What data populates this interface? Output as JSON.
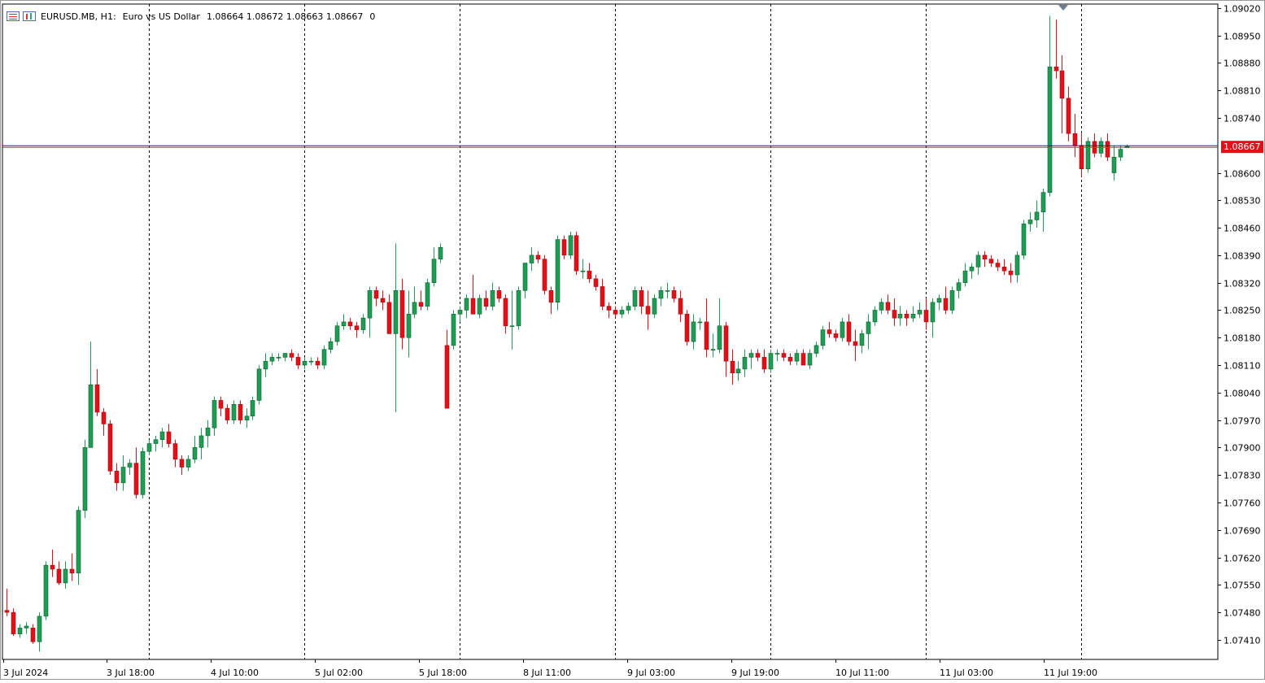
{
  "symbol": {
    "name": "EURUSD.MB, H1:",
    "description": "Euro vs US Dollar",
    "ohlc": "1.08664 1.08672 1.08663 1.08667",
    "volume": "0"
  },
  "colors": {
    "bull": "#1f9d55",
    "bear": "#e3101a",
    "bid_line": "#1a237e",
    "ask_line": "#d32f2f",
    "price_label_bg": "#e3101a"
  },
  "chart_data": {
    "type": "candlestick",
    "timeframe": "H1",
    "ylim": [
      1.0736,
      1.0903
    ],
    "current_price": "1.08667",
    "yticks": [
      "1.09020",
      "1.08950",
      "1.08880",
      "1.08810",
      "1.08740",
      "1.08600",
      "1.08530",
      "1.08460",
      "1.08390",
      "1.08320",
      "1.08250",
      "1.08180",
      "1.08110",
      "1.08040",
      "1.07970",
      "1.07900",
      "1.07830",
      "1.07760",
      "1.07690",
      "1.07620",
      "1.07550",
      "1.07480",
      "1.07410"
    ],
    "xticks": [
      "3 Jul 2024",
      "3 Jul 18:00",
      "4 Jul 10:00",
      "5 Jul 02:00",
      "5 Jul 18:00",
      "8 Jul 11:00",
      "9 Jul 03:00",
      "9 Jul 19:00",
      "10 Jul 11:00",
      "11 Jul 03:00",
      "11 Jul 19:00"
    ],
    "ohlc": [
      [
        1.07485,
        1.0754,
        1.0747,
        1.0748
      ],
      [
        1.0748,
        1.0749,
        1.0742,
        1.07425
      ],
      [
        1.07425,
        1.0745,
        1.07415,
        1.0744
      ],
      [
        1.0744,
        1.07455,
        1.07425,
        1.07445
      ],
      [
        1.0744,
        1.0745,
        1.074,
        1.07405
      ],
      [
        1.07405,
        1.0748,
        1.0738,
        1.0747
      ],
      [
        1.0747,
        1.0761,
        1.0746,
        1.076
      ],
      [
        1.076,
        1.0764,
        1.0757,
        1.0759
      ],
      [
        1.0759,
        1.0761,
        1.0755,
        1.07555
      ],
      [
        1.07555,
        1.0761,
        1.0754,
        1.0759
      ],
      [
        1.0759,
        1.0763,
        1.0756,
        1.0758
      ],
      [
        1.0758,
        1.0775,
        1.0755,
        1.0774
      ],
      [
        1.0774,
        1.0792,
        1.0772,
        1.079
      ],
      [
        1.079,
        1.0817,
        1.079,
        1.0806
      ],
      [
        1.0806,
        1.081,
        1.0798,
        1.0799
      ],
      [
        1.0799,
        1.08,
        1.0793,
        1.0796
      ],
      [
        1.0796,
        1.0797,
        1.0783,
        1.0784
      ],
      [
        1.0784,
        1.0786,
        1.0779,
        1.0781
      ],
      [
        1.0781,
        1.0788,
        1.0779,
        1.0785
      ],
      [
        1.0785,
        1.0787,
        1.0783,
        1.0786
      ],
      [
        1.0786,
        1.079,
        1.0777,
        1.0778
      ],
      [
        1.0778,
        1.079,
        1.0777,
        1.0789
      ],
      [
        1.0789,
        1.0792,
        1.0788,
        1.0791
      ],
      [
        1.0791,
        1.0793,
        1.0789,
        1.0792
      ],
      [
        1.0792,
        1.0795,
        1.079,
        1.0794
      ],
      [
        1.0794,
        1.0796,
        1.079,
        1.0791
      ],
      [
        1.0791,
        1.0792,
        1.0785,
        1.0787
      ],
      [
        1.0787,
        1.0788,
        1.0783,
        1.0785
      ],
      [
        1.0785,
        1.0788,
        1.0784,
        1.0787
      ],
      [
        1.0787,
        1.0793,
        1.0786,
        1.079
      ],
      [
        1.079,
        1.0795,
        1.0787,
        1.0793
      ],
      [
        1.0793,
        1.0797,
        1.079,
        1.0795
      ],
      [
        1.0795,
        1.0803,
        1.0793,
        1.0802
      ],
      [
        1.0802,
        1.0803,
        1.0798,
        1.08
      ],
      [
        1.08,
        1.0801,
        1.0796,
        1.0797
      ],
      [
        1.0797,
        1.0802,
        1.0796,
        1.0801
      ],
      [
        1.0801,
        1.0802,
        1.0796,
        1.0797
      ],
      [
        1.0797,
        1.08,
        1.0795,
        1.0798
      ],
      [
        1.0798,
        1.0803,
        1.0797,
        1.0802
      ],
      [
        1.0802,
        1.0811,
        1.0801,
        1.081
      ],
      [
        1.081,
        1.0814,
        1.0808,
        1.0812
      ],
      [
        1.0812,
        1.0814,
        1.0811,
        1.0813
      ],
      [
        1.0813,
        1.0814,
        1.0812,
        1.0813
      ],
      [
        1.0813,
        1.0814,
        1.0812,
        1.0814
      ],
      [
        1.0814,
        1.0815,
        1.0812,
        1.0813
      ],
      [
        1.0813,
        1.0814,
        1.081,
        1.0811
      ],
      [
        1.0811,
        1.0813,
        1.081,
        1.0812
      ],
      [
        1.0812,
        1.0813,
        1.0811,
        1.0812
      ],
      [
        1.0812,
        1.0813,
        1.081,
        1.0811
      ],
      [
        1.0811,
        1.0816,
        1.081,
        1.0815
      ],
      [
        1.0815,
        1.0818,
        1.0814,
        1.0817
      ],
      [
        1.0817,
        1.0822,
        1.0816,
        1.0821
      ],
      [
        1.0821,
        1.0824,
        1.082,
        1.0822
      ],
      [
        1.0822,
        1.0823,
        1.082,
        1.0821
      ],
      [
        1.0821,
        1.0822,
        1.0818,
        1.082
      ],
      [
        1.082,
        1.0824,
        1.0819,
        1.0823
      ],
      [
        1.0823,
        1.0831,
        1.0818,
        1.083
      ],
      [
        1.083,
        1.0831,
        1.0826,
        1.0828
      ],
      [
        1.0828,
        1.083,
        1.0825,
        1.0827
      ],
      [
        1.0827,
        1.0829,
        1.0819,
        1.0819
      ],
      [
        1.0819,
        1.0842,
        1.0799,
        1.083
      ],
      [
        1.083,
        1.0833,
        1.0815,
        1.0818
      ],
      [
        1.0818,
        1.083,
        1.0813,
        1.0824
      ],
      [
        1.0824,
        1.0831,
        1.0823,
        1.0827
      ],
      [
        1.0827,
        1.083,
        1.0825,
        1.0826
      ],
      [
        1.0826,
        1.0833,
        1.0825,
        1.0832
      ],
      [
        1.0832,
        1.0841,
        1.0831,
        1.0838
      ],
      [
        1.0838,
        1.0842,
        1.0837,
        1.0841
      ],
      [
        1.0816,
        1.082,
        1.08,
        1.08
      ],
      [
        1.0816,
        1.0825,
        1.0815,
        1.0824
      ],
      [
        1.0824,
        1.0826,
        1.0822,
        1.0825
      ],
      [
        1.0825,
        1.0829,
        1.0823,
        1.0828
      ],
      [
        1.0828,
        1.0834,
        1.0824,
        1.0824
      ],
      [
        1.0824,
        1.0829,
        1.0823,
        1.0828
      ],
      [
        1.0828,
        1.083,
        1.0825,
        1.0826
      ],
      [
        1.0826,
        1.0832,
        1.0825,
        1.083
      ],
      [
        1.083,
        1.0831,
        1.0827,
        1.0828
      ],
      [
        1.0828,
        1.0829,
        1.0819,
        1.0821
      ],
      [
        1.0821,
        1.083,
        1.0815,
        1.0821
      ],
      [
        1.0821,
        1.0831,
        1.082,
        1.083
      ],
      [
        1.083,
        1.0837,
        1.0828,
        1.0837
      ],
      [
        1.0837,
        1.0841,
        1.0835,
        1.0839
      ],
      [
        1.0839,
        1.084,
        1.0837,
        1.0838
      ],
      [
        1.0838,
        1.0839,
        1.0829,
        1.083
      ],
      [
        1.083,
        1.0831,
        1.0824,
        1.0827
      ],
      [
        1.0827,
        1.0844,
        1.0825,
        1.0843
      ],
      [
        1.0843,
        1.0844,
        1.0838,
        1.0839
      ],
      [
        1.0839,
        1.0845,
        1.0838,
        1.0844
      ],
      [
        1.0844,
        1.0845,
        1.0834,
        1.0835
      ],
      [
        1.0835,
        1.0838,
        1.0833,
        1.0835
      ],
      [
        1.0835,
        1.0837,
        1.0832,
        1.0833
      ],
      [
        1.0833,
        1.0834,
        1.083,
        1.0831
      ],
      [
        1.0831,
        1.0833,
        1.0825,
        1.0826
      ],
      [
        1.0826,
        1.0827,
        1.0823,
        1.0825
      ],
      [
        1.0825,
        1.0826,
        1.0823,
        1.0824
      ],
      [
        1.0824,
        1.0826,
        1.0823,
        1.0825
      ],
      [
        1.0825,
        1.0827,
        1.0824,
        1.0826
      ],
      [
        1.0826,
        1.0831,
        1.0825,
        1.083
      ],
      [
        1.083,
        1.0831,
        1.0824,
        1.0826
      ],
      [
        1.0826,
        1.083,
        1.082,
        1.0824
      ],
      [
        1.0824,
        1.0829,
        1.0823,
        1.0828
      ],
      [
        1.0828,
        1.0831,
        1.0826,
        1.083
      ],
      [
        1.083,
        1.0832,
        1.0828,
        1.083
      ],
      [
        1.083,
        1.0831,
        1.0827,
        1.0828
      ],
      [
        1.0828,
        1.083,
        1.0822,
        1.0824
      ],
      [
        1.0824,
        1.0825,
        1.0816,
        1.0817
      ],
      [
        1.0817,
        1.0824,
        1.0815,
        1.0822
      ],
      [
        1.0822,
        1.0823,
        1.082,
        1.0822
      ],
      [
        1.0822,
        1.0828,
        1.0813,
        1.0815
      ],
      [
        1.0815,
        1.0819,
        1.0813,
        1.0815
      ],
      [
        1.0815,
        1.0828,
        1.0814,
        1.0821
      ],
      [
        1.0821,
        1.0822,
        1.0808,
        1.0812
      ],
      [
        1.0812,
        1.0815,
        1.0806,
        1.0809
      ],
      [
        1.0809,
        1.0812,
        1.0807,
        1.081
      ],
      [
        1.081,
        1.0815,
        1.0808,
        1.0813
      ],
      [
        1.0813,
        1.0815,
        1.081,
        1.0814
      ],
      [
        1.0814,
        1.0815,
        1.0812,
        1.0813
      ],
      [
        1.0813,
        1.0815,
        1.0809,
        1.081
      ],
      [
        1.081,
        1.0815,
        1.0809,
        1.0814
      ],
      [
        1.0814,
        1.0815,
        1.0812,
        1.0814
      ],
      [
        1.0814,
        1.0815,
        1.0812,
        1.0813
      ],
      [
        1.0813,
        1.0814,
        1.0811,
        1.0812
      ],
      [
        1.0812,
        1.0815,
        1.0811,
        1.0814
      ],
      [
        1.0814,
        1.0815,
        1.0811,
        1.0811
      ],
      [
        1.0811,
        1.0815,
        1.081,
        1.0814
      ],
      [
        1.0814,
        1.0817,
        1.0813,
        1.0816
      ],
      [
        1.0816,
        1.0821,
        1.0815,
        1.082
      ],
      [
        1.082,
        1.0822,
        1.0818,
        1.0819
      ],
      [
        1.0819,
        1.082,
        1.0817,
        1.0818
      ],
      [
        1.0818,
        1.0823,
        1.0817,
        1.0822
      ],
      [
        1.0822,
        1.0824,
        1.0816,
        1.0817
      ],
      [
        1.0817,
        1.082,
        1.0812,
        1.0816
      ],
      [
        1.0816,
        1.082,
        1.0814,
        1.0819
      ],
      [
        1.0819,
        1.0824,
        1.0815,
        1.0822
      ],
      [
        1.0822,
        1.0826,
        1.0821,
        1.0825
      ],
      [
        1.0825,
        1.0828,
        1.0824,
        1.0827
      ],
      [
        1.0827,
        1.0829,
        1.0824,
        1.0825
      ],
      [
        1.0825,
        1.0828,
        1.0821,
        1.0823
      ],
      [
        1.0823,
        1.0826,
        1.0821,
        1.0824
      ],
      [
        1.0824,
        1.0825,
        1.0821,
        1.0823
      ],
      [
        1.0823,
        1.0826,
        1.0822,
        1.0824
      ],
      [
        1.0824,
        1.0827,
        1.0823,
        1.0825
      ],
      [
        1.0825,
        1.0828,
        1.082,
        1.0822
      ],
      [
        1.0822,
        1.0828,
        1.0818,
        1.0827
      ],
      [
        1.0827,
        1.0829,
        1.0825,
        1.0828
      ],
      [
        1.0828,
        1.0831,
        1.0824,
        1.0825
      ],
      [
        1.0825,
        1.0831,
        1.0824,
        1.083
      ],
      [
        1.083,
        1.0833,
        1.0828,
        1.0832
      ],
      [
        1.0832,
        1.0837,
        1.0831,
        1.0835
      ],
      [
        1.0835,
        1.0837,
        1.0833,
        1.0836
      ],
      [
        1.0836,
        1.084,
        1.0834,
        1.0839
      ],
      [
        1.0839,
        1.084,
        1.0836,
        1.0838
      ],
      [
        1.0838,
        1.0839,
        1.0836,
        1.0837
      ],
      [
        1.0837,
        1.0838,
        1.0835,
        1.0836
      ],
      [
        1.0836,
        1.0838,
        1.0834,
        1.0835
      ],
      [
        1.0835,
        1.0837,
        1.0832,
        1.0834
      ],
      [
        1.0834,
        1.084,
        1.0832,
        1.0839
      ],
      [
        1.0839,
        1.0848,
        1.0838,
        1.0847
      ],
      [
        1.0847,
        1.085,
        1.0845,
        1.0848
      ],
      [
        1.0848,
        1.0853,
        1.0846,
        1.085
      ],
      [
        1.085,
        1.0856,
        1.0845,
        1.0855
      ],
      [
        1.0855,
        1.09,
        1.0854,
        1.0887
      ],
      [
        1.0887,
        1.0899,
        1.0884,
        1.0886
      ],
      [
        1.0886,
        1.089,
        1.087,
        1.0879
      ],
      [
        1.0879,
        1.0882,
        1.0868,
        1.087
      ],
      [
        1.087,
        1.0875,
        1.0864,
        1.0867
      ],
      [
        1.0867,
        1.087,
        1.0859,
        1.0861
      ],
      [
        1.0861,
        1.0869,
        1.086,
        1.0868
      ],
      [
        1.0868,
        1.087,
        1.0864,
        1.0865
      ],
      [
        1.0865,
        1.0869,
        1.0864,
        1.0868
      ],
      [
        1.0868,
        1.087,
        1.0863,
        1.0864
      ],
      [
        1.086,
        1.0867,
        1.0858,
        1.0864
      ],
      [
        1.0864,
        1.0867,
        1.0863,
        1.0866
      ],
      [
        1.08664,
        1.08672,
        1.08663,
        1.08667
      ]
    ]
  }
}
